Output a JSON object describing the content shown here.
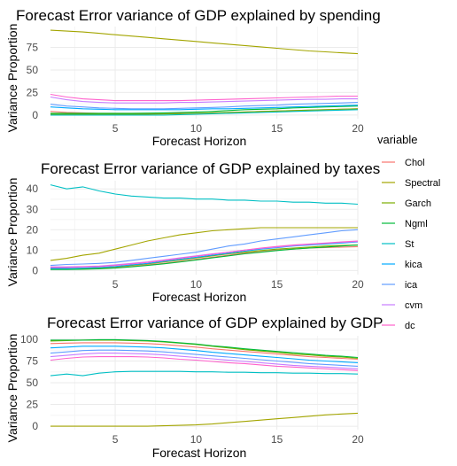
{
  "chart_data": [
    {
      "type": "line",
      "title": "Forecast Error variance of GDP explained by spending",
      "xlabel": "Forecast Horizon",
      "ylabel": "Variance Proportion",
      "xlim": [
        1,
        20
      ],
      "ylim": [
        -4,
        98
      ],
      "xticks": [
        5,
        10,
        15,
        20
      ],
      "yticks": [
        0,
        25,
        50,
        75
      ],
      "grid": true,
      "x": [
        1,
        2,
        3,
        4,
        5,
        6,
        7,
        8,
        9,
        10,
        11,
        12,
        13,
        14,
        15,
        16,
        17,
        18,
        19,
        20
      ],
      "series": [
        {
          "name": "Chol",
          "values": [
            4,
            3,
            2.5,
            2,
            2,
            2,
            2,
            2,
            2,
            2,
            2.5,
            3,
            3.5,
            4,
            4.5,
            5,
            5.5,
            6,
            6.5,
            7
          ]
        },
        {
          "name": "Spectral",
          "values": [
            94,
            93,
            92,
            90.5,
            89,
            87.5,
            86,
            84.5,
            83,
            81.5,
            80,
            78.5,
            77,
            75.5,
            74,
            72.5,
            71,
            70,
            69,
            68
          ]
        },
        {
          "name": "Garch",
          "values": [
            1,
            1,
            1,
            1,
            1,
            1,
            1,
            1.2,
            1.5,
            2,
            2.5,
            3,
            3.5,
            4,
            4.5,
            5,
            5.5,
            6,
            6.5,
            7
          ]
        },
        {
          "name": "Ngml",
          "values": [
            2,
            2,
            2,
            2,
            2,
            2,
            2.2,
            2.5,
            3,
            3.5,
            4,
            5,
            6,
            6.5,
            7,
            8,
            8.5,
            9,
            9.5,
            10
          ]
        },
        {
          "name": "St",
          "values": [
            0,
            0,
            0,
            0,
            0,
            0,
            0,
            0,
            0.5,
            1,
            1.5,
            2,
            2.5,
            3,
            3.5,
            4,
            4.5,
            5,
            5.5,
            6
          ]
        },
        {
          "name": "kica",
          "values": [
            9,
            8,
            7,
            6.5,
            6,
            6,
            6,
            6,
            6,
            6.5,
            7,
            7,
            7.5,
            8,
            8.5,
            9,
            9.5,
            10,
            10.5,
            11
          ]
        },
        {
          "name": "ica",
          "values": [
            12,
            10,
            9,
            8,
            7.5,
            7,
            7,
            7,
            7.5,
            8,
            8.5,
            9,
            10,
            10.5,
            11,
            12,
            12.5,
            13,
            13.5,
            14
          ]
        },
        {
          "name": "cvm",
          "values": [
            20,
            17,
            15,
            14,
            13.5,
            13.5,
            13.5,
            13.5,
            14,
            14,
            14.5,
            15,
            15.5,
            16,
            16.5,
            17,
            17.5,
            17.5,
            18,
            18
          ]
        },
        {
          "name": "dc",
          "values": [
            23,
            20,
            18,
            17,
            16,
            16,
            16,
            16,
            16,
            16.5,
            17,
            17.5,
            18,
            18.5,
            19,
            19.5,
            20,
            20.5,
            21,
            21
          ]
        }
      ]
    },
    {
      "type": "line",
      "title": "Forecast Error variance of GDP explained by taxes",
      "xlabel": "Forecast Horizon",
      "ylabel": "Variance Proportion",
      "xlim": [
        1,
        20
      ],
      "ylim": [
        -2,
        44
      ],
      "xticks": [
        5,
        10,
        15,
        20
      ],
      "yticks": [
        0,
        10,
        20,
        30,
        40
      ],
      "grid": true,
      "x": [
        1,
        2,
        3,
        4,
        5,
        6,
        7,
        8,
        9,
        10,
        11,
        12,
        13,
        14,
        15,
        16,
        17,
        18,
        19,
        20
      ],
      "series": [
        {
          "name": "Chol",
          "values": [
            1,
            1,
            1,
            1.2,
            1.5,
            2,
            2.8,
            3.5,
            4.5,
            5.5,
            6.5,
            7.5,
            8.5,
            9.2,
            10,
            10.5,
            11,
            11.3,
            11.5,
            11.7
          ]
        },
        {
          "name": "Spectral",
          "values": [
            5,
            6,
            7.5,
            8.5,
            10.5,
            12.5,
            14.5,
            16,
            17.5,
            18.5,
            19.5,
            20,
            20.5,
            21,
            21,
            21,
            21,
            21,
            21,
            21
          ]
        },
        {
          "name": "Garch",
          "values": [
            0.8,
            0.8,
            1,
            1.2,
            1.8,
            2.5,
            3.3,
            4.2,
            5.2,
            6.2,
            7.2,
            8.2,
            9,
            9.8,
            10.5,
            11,
            11.5,
            12,
            12.3,
            12.5
          ]
        },
        {
          "name": "Ngml",
          "values": [
            0.5,
            0.5,
            0.6,
            0.8,
            1.2,
            1.8,
            2.5,
            3.3,
            4.2,
            5.2,
            6.2,
            7.2,
            8.2,
            9,
            9.8,
            10.5,
            11,
            11.5,
            12,
            12.5
          ]
        },
        {
          "name": "St",
          "values": [
            42,
            40,
            41,
            39,
            37.5,
            36.5,
            36,
            35.5,
            35.5,
            35,
            35,
            34.5,
            34.5,
            34,
            34,
            33.5,
            33.5,
            33,
            33,
            32.5
          ]
        },
        {
          "name": "kica",
          "values": [
            1,
            1,
            1.2,
            1.5,
            2,
            2.8,
            3.5,
            4.5,
            5.5,
            6.5,
            7.5,
            8.5,
            9.5,
            10.5,
            11.2,
            12,
            12.5,
            13,
            13.5,
            14
          ]
        },
        {
          "name": "ica",
          "values": [
            2.5,
            3,
            3.2,
            3.5,
            4,
            5,
            6,
            7,
            8,
            9,
            10.5,
            12,
            13,
            14.5,
            15.5,
            16.5,
            17.5,
            18.5,
            19.5,
            20
          ]
        },
        {
          "name": "cvm",
          "values": [
            1.8,
            1.8,
            2,
            2.2,
            2.8,
            3.5,
            4.2,
            5.2,
            6.2,
            7.2,
            8.2,
            9,
            10,
            10.8,
            11.5,
            12.2,
            12.8,
            13.3,
            13.8,
            14.2
          ]
        },
        {
          "name": "dc",
          "values": [
            1.5,
            1.5,
            1.8,
            2,
            2.5,
            3.2,
            4,
            5,
            6,
            7,
            8,
            9,
            10,
            11,
            11.8,
            12.5,
            13,
            13.5,
            14,
            14.5
          ]
        }
      ]
    },
    {
      "type": "line",
      "title": "Forecast Error variance of GDP explained by GDP",
      "xlabel": "Forecast Horizon",
      "ylabel": "Variance Proportion",
      "xlim": [
        1,
        20
      ],
      "ylim": [
        -4,
        104
      ],
      "xticks": [
        5,
        10,
        15,
        20
      ],
      "yticks": [
        0,
        25,
        50,
        75,
        100
      ],
      "grid": true,
      "x": [
        1,
        2,
        3,
        4,
        5,
        6,
        7,
        8,
        9,
        10,
        11,
        12,
        13,
        14,
        15,
        16,
        17,
        18,
        19,
        20
      ],
      "series": [
        {
          "name": "Chol",
          "values": [
            95,
            95.5,
            96,
            96,
            96,
            95.5,
            95,
            94,
            92.5,
            91,
            89,
            87.5,
            86,
            84.5,
            83,
            81.5,
            80,
            79,
            78,
            77
          ]
        },
        {
          "name": "Spectral",
          "values": [
            0,
            0,
            0,
            0,
            0,
            0,
            0,
            0.5,
            1,
            1.5,
            2.5,
            4,
            5.5,
            7,
            8.5,
            10,
            11.5,
            13,
            14,
            15
          ]
        },
        {
          "name": "Garch",
          "values": [
            98,
            98.5,
            99,
            99,
            99,
            98.5,
            98,
            97,
            95.5,
            94,
            92,
            90,
            88,
            86.5,
            85,
            83,
            82,
            80.5,
            79.5,
            78
          ]
        },
        {
          "name": "Ngml",
          "values": [
            99,
            99,
            99,
            99.5,
            99.5,
            99,
            98.5,
            97.5,
            96,
            94.5,
            92.5,
            91,
            89,
            87.5,
            86,
            84.5,
            83,
            81.5,
            80.5,
            79
          ]
        },
        {
          "name": "St",
          "values": [
            58,
            60,
            58,
            61,
            62.5,
            63,
            63,
            63,
            63,
            62.5,
            62.5,
            62,
            62,
            61.5,
            61.5,
            61,
            61,
            60.5,
            60.5,
            60
          ]
        },
        {
          "name": "kica",
          "values": [
            90,
            91,
            92,
            92,
            92,
            91.5,
            91,
            90,
            88.5,
            87,
            85,
            83.5,
            82,
            80.5,
            79,
            77.5,
            76,
            75,
            74,
            73
          ]
        },
        {
          "name": "ica",
          "values": [
            84,
            85.5,
            87,
            87.5,
            87.5,
            87,
            86.5,
            85.5,
            84,
            82.5,
            81,
            79.5,
            78,
            76.5,
            75,
            73.5,
            72,
            71,
            70,
            69
          ]
        },
        {
          "name": "cvm",
          "values": [
            80,
            81.5,
            83,
            84,
            84,
            83.5,
            83,
            82,
            80.5,
            79,
            77.5,
            76,
            74.5,
            73,
            71.5,
            70,
            69,
            68,
            67,
            66
          ]
        },
        {
          "name": "dc",
          "values": [
            76,
            78,
            79.5,
            80,
            80,
            80,
            79.5,
            78.5,
            77,
            76,
            74.5,
            73,
            72,
            70.5,
            69,
            68,
            67,
            66,
            65,
            64
          ]
        }
      ]
    }
  ],
  "legend": {
    "title": "variable",
    "placement": "right",
    "items": [
      {
        "name": "Chol",
        "color": "#F8766D"
      },
      {
        "name": "Spectral",
        "color": "#A3A500"
      },
      {
        "name": "Garch",
        "color": "#7CAE00"
      },
      {
        "name": "Ngml",
        "color": "#00BA38"
      },
      {
        "name": "St",
        "color": "#00BFC4"
      },
      {
        "name": "kica",
        "color": "#00A9FF"
      },
      {
        "name": "ica",
        "color": "#619CFF"
      },
      {
        "name": "cvm",
        "color": "#C77CFF"
      },
      {
        "name": "dc",
        "color": "#FF61CC"
      }
    ]
  },
  "colors": {
    "Chol": "#F8766D",
    "Spectral": "#A3A500",
    "Garch": "#7CAE00",
    "Ngml": "#00BA38",
    "St": "#00BFC4",
    "kica": "#00A9FF",
    "ica": "#619CFF",
    "cvm": "#C77CFF",
    "dc": "#FF61CC",
    "grid_major": "#ebebeb",
    "grid_minor": "#f5f5f5",
    "axis_text": "#4d4d4d"
  }
}
